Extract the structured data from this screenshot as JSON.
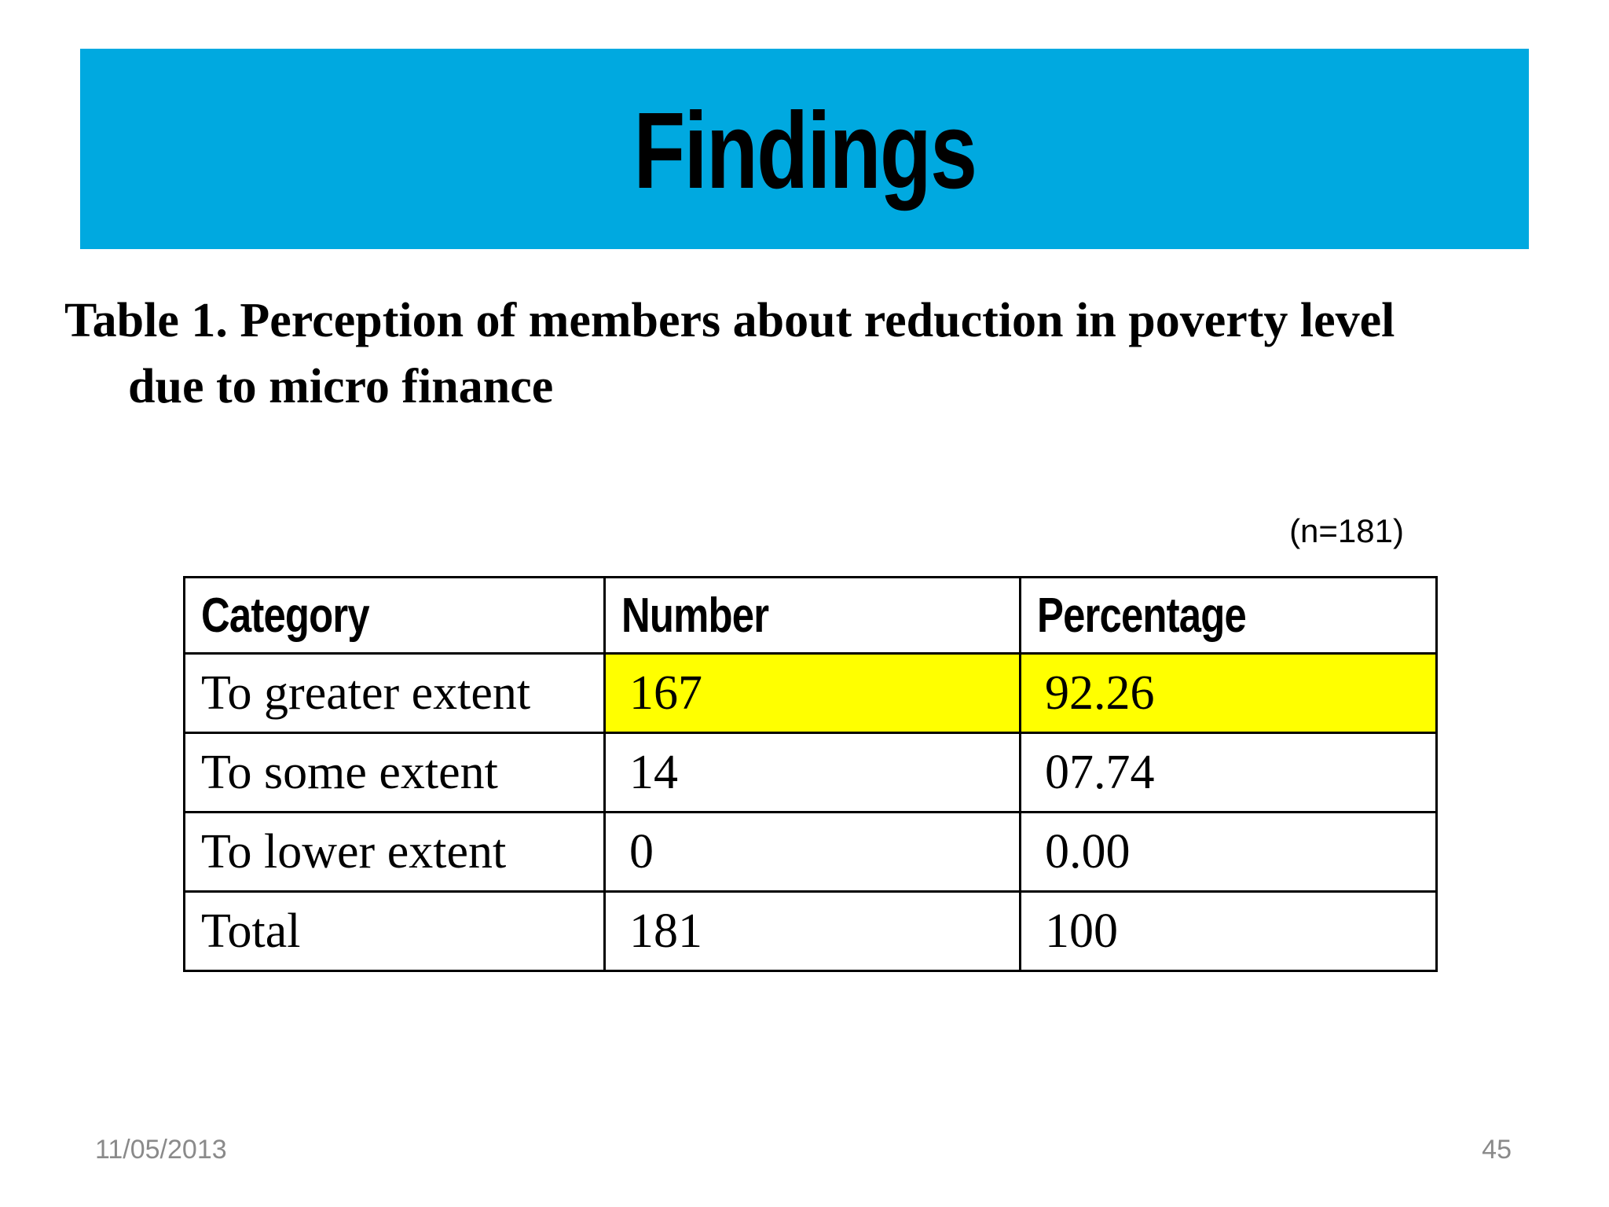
{
  "slide": {
    "title": "Findings",
    "caption_line1": "Table 1. Perception of members about reduction in poverty level",
    "caption_line2": "due to micro finance",
    "sample_size_note": "(n=181)",
    "footer_date": "11/05/2013",
    "page_number": "45"
  },
  "table": {
    "headers": [
      "Category",
      "Number",
      "Percentage"
    ],
    "rows": [
      {
        "category": "To greater extent",
        "number": "167",
        "percentage": "92.26",
        "highlighted": true
      },
      {
        "category": "To some extent",
        "number": "14",
        "percentage": "07.74",
        "highlighted": false
      },
      {
        "category": "To lower extent",
        "number": "0",
        "percentage": "0.00",
        "highlighted": false
      },
      {
        "category": "Total",
        "number": "181",
        "percentage": "100",
        "highlighted": false
      }
    ]
  },
  "colors": {
    "banner_blue": "#00A9E0",
    "highlight_yellow": "#FFFF00",
    "border_black": "#000000",
    "footer_gray": "#8A8A8A"
  }
}
